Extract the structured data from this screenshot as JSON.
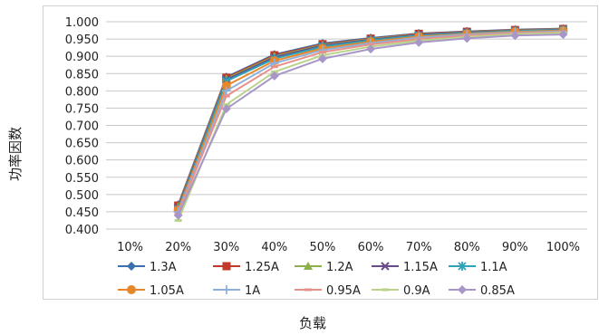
{
  "chart_data": {
    "type": "line",
    "ylabel": "功率因数",
    "xlabel": "负载",
    "categories": [
      "10%",
      "20%",
      "30%",
      "40%",
      "50%",
      "60%",
      "70%",
      "80%",
      "90%",
      "100%"
    ],
    "ylim": [
      0.4,
      1.0
    ],
    "yticks": [
      "0.400",
      "0.450",
      "0.500",
      "0.550",
      "0.600",
      "0.650",
      "0.700",
      "0.750",
      "0.800",
      "0.850",
      "0.900",
      "0.950",
      "1.000"
    ],
    "grid": true,
    "legend_position": "bottom",
    "series": [
      {
        "name": "1.3A",
        "color": "#3a6fb0",
        "marker": "diamond",
        "values": [
          null,
          0.47,
          0.84,
          0.905,
          0.937,
          0.953,
          0.966,
          0.972,
          0.977,
          0.98
        ]
      },
      {
        "name": "1.25A",
        "color": "#c0392b",
        "marker": "square",
        "values": [
          null,
          0.468,
          0.838,
          0.903,
          0.935,
          0.951,
          0.965,
          0.971,
          0.976,
          0.979
        ]
      },
      {
        "name": "1.2A",
        "color": "#8cb04a",
        "marker": "triangle",
        "values": [
          null,
          0.465,
          0.835,
          0.9,
          0.933,
          0.95,
          0.963,
          0.97,
          0.975,
          0.978
        ]
      },
      {
        "name": "1.15A",
        "color": "#6b4a8c",
        "marker": "x",
        "values": [
          null,
          0.462,
          0.832,
          0.897,
          0.931,
          0.948,
          0.962,
          0.969,
          0.974,
          0.977
        ]
      },
      {
        "name": "1.1A",
        "color": "#2ea3b8",
        "marker": "star",
        "values": [
          null,
          0.458,
          0.828,
          0.893,
          0.928,
          0.946,
          0.96,
          0.967,
          0.973,
          0.976
        ]
      },
      {
        "name": "1.05A",
        "color": "#e8862a",
        "marker": "circle",
        "values": [
          null,
          0.455,
          0.815,
          0.887,
          0.923,
          0.942,
          0.957,
          0.965,
          0.971,
          0.974
        ]
      },
      {
        "name": "1A",
        "color": "#8fb0d8",
        "marker": "plus",
        "values": [
          null,
          0.45,
          0.8,
          0.88,
          0.918,
          0.938,
          0.954,
          0.963,
          0.969,
          0.972
        ]
      },
      {
        "name": "0.95A",
        "color": "#e8908a",
        "marker": "dash",
        "values": [
          null,
          0.445,
          0.785,
          0.87,
          0.912,
          0.934,
          0.95,
          0.96,
          0.967,
          0.97
        ]
      },
      {
        "name": "0.9A",
        "color": "#b9d48a",
        "marker": "dash",
        "values": [
          null,
          0.425,
          0.76,
          0.855,
          0.903,
          0.928,
          0.945,
          0.956,
          0.964,
          0.968
        ]
      },
      {
        "name": "0.85A",
        "color": "#a896c8",
        "marker": "diamond",
        "values": [
          null,
          0.44,
          0.748,
          0.843,
          0.893,
          0.921,
          0.94,
          0.952,
          0.96,
          0.963
        ]
      }
    ]
  }
}
